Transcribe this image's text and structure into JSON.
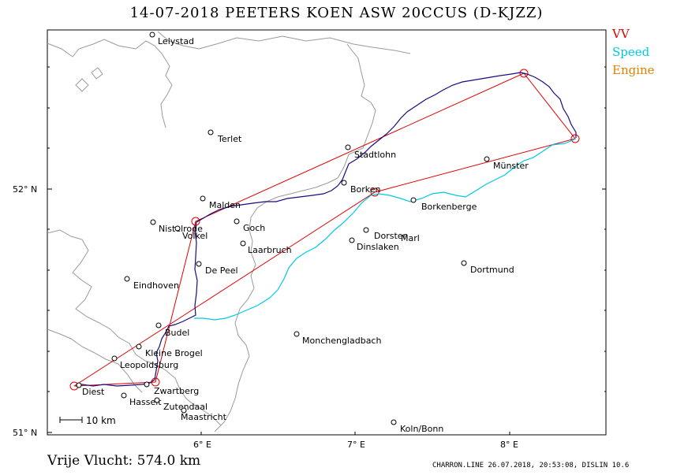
{
  "title": "14-07-2018   PEETERS KOEN   ASW 20CCUS (D-KJZZ)",
  "legend": {
    "vv": {
      "label": "VV",
      "color": "#e00000"
    },
    "speed": {
      "label": "Speed",
      "color": "#00c8e6"
    },
    "engine": {
      "label": "Engine",
      "color": "#e08000"
    }
  },
  "distance_label": "Vrije Vlucht:  574.0 km",
  "footer": "CHARRON.LINE 26.07.2018, 20:53:08, DISLIN 10.6",
  "scale_bar": "10 km",
  "axes": {
    "lat_labels": [
      "52° N",
      "51° N"
    ],
    "lon_labels": [
      "6° E",
      "7° E",
      "8° E"
    ]
  },
  "places": [
    {
      "name": "Lelystad"
    },
    {
      "name": "Terlet"
    },
    {
      "name": "Stadtlohn"
    },
    {
      "name": "Münster"
    },
    {
      "name": "Borken"
    },
    {
      "name": "Malden"
    },
    {
      "name": "Borkenberge"
    },
    {
      "name": "Goch"
    },
    {
      "name": "Nistelrode"
    },
    {
      "name": "Volkel"
    },
    {
      "name": "Dorsten"
    },
    {
      "name": "Marl"
    },
    {
      "name": "Laarbruch"
    },
    {
      "name": "Dinslaken"
    },
    {
      "name": "De Peel"
    },
    {
      "name": "Dortmund"
    },
    {
      "name": "Eindhoven"
    },
    {
      "name": "Budel"
    },
    {
      "name": "Monchengladbach"
    },
    {
      "name": "Kleine Brogel"
    },
    {
      "name": "Leopoldsburg"
    },
    {
      "name": "Diest"
    },
    {
      "name": "Zwartberg"
    },
    {
      "name": "Hasselt"
    },
    {
      "name": "Zutendaal"
    },
    {
      "name": "Maastricht"
    },
    {
      "name": "Koln/Bonn"
    }
  ]
}
